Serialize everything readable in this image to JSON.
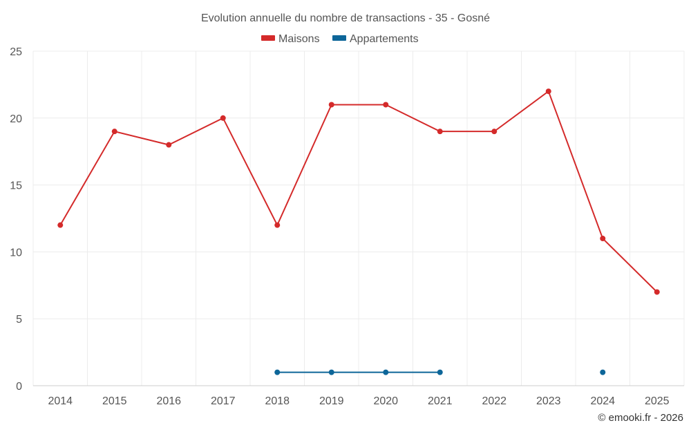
{
  "chart_data": {
    "type": "line",
    "title": "Evolution annuelle du nombre de transactions - 35 - Gosné",
    "categories": [
      "2014",
      "2015",
      "2016",
      "2017",
      "2018",
      "2019",
      "2020",
      "2021",
      "2022",
      "2023",
      "2024",
      "2025"
    ],
    "ylim": [
      0,
      25
    ],
    "yticks": [
      0,
      5,
      10,
      15,
      20,
      25
    ],
    "grid": true,
    "legend_position": "top-center",
    "series": [
      {
        "name": "Maisons",
        "color": "#d42a2a",
        "values": [
          12,
          19,
          18,
          20,
          12,
          21,
          21,
          19,
          19,
          22,
          11,
          7
        ]
      },
      {
        "name": "Appartements",
        "color": "#0d6699",
        "values": [
          null,
          null,
          null,
          null,
          1,
          1,
          1,
          1,
          null,
          null,
          1,
          null
        ]
      }
    ],
    "credit": "© emooki.fr - 2026"
  }
}
